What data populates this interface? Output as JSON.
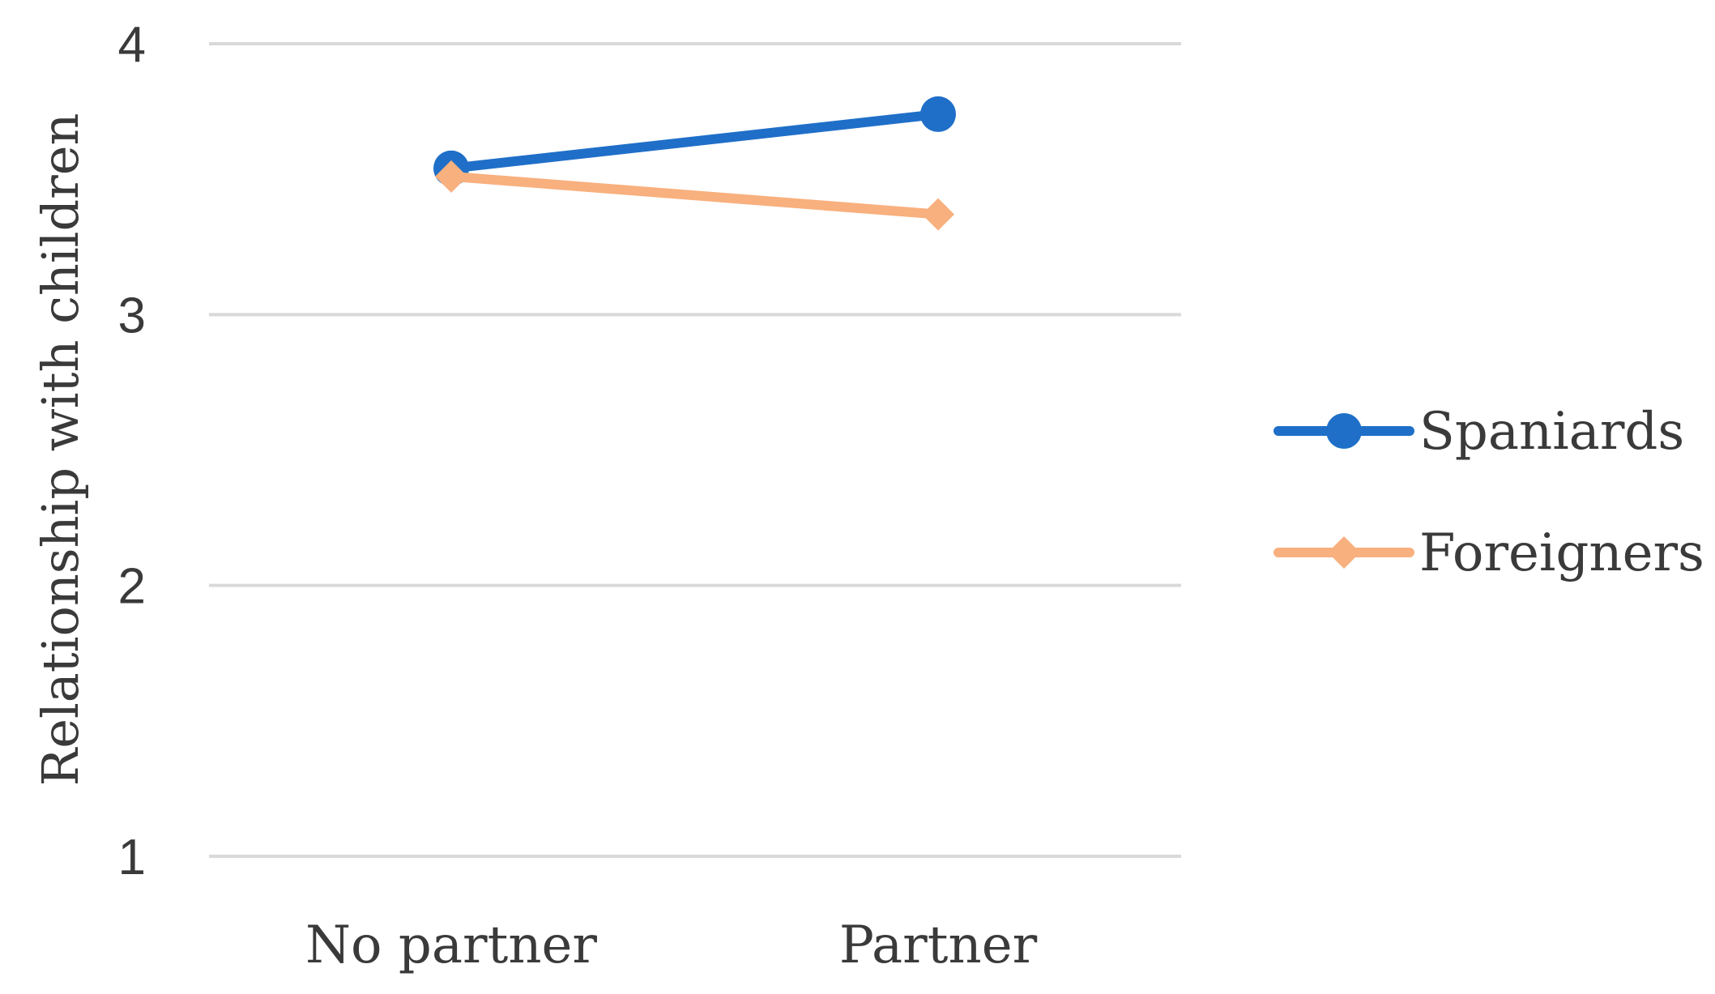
{
  "chart_data": {
    "type": "line",
    "categories": [
      "No partner",
      "Partner"
    ],
    "series": [
      {
        "name": "Spaniards",
        "values": [
          3.54,
          3.74
        ],
        "color": "#1f6fc8",
        "marker": "circle"
      },
      {
        "name": "Foreigners",
        "values": [
          3.51,
          3.37
        ],
        "color": "#f8b07e",
        "marker": "diamond"
      }
    ],
    "ylabel": "Relationship with children",
    "ylim": [
      1,
      4
    ],
    "yticks": [
      "1",
      "2",
      "3",
      "4"
    ],
    "grid": true,
    "legend_position": "right"
  }
}
